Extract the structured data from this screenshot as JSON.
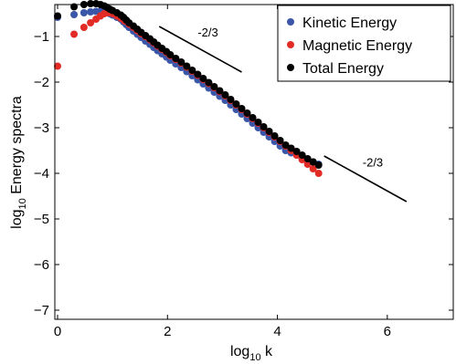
{
  "chart_data": {
    "type": "scatter",
    "xlim": [
      -0.05,
      7.2
    ],
    "ylim": [
      -7.2,
      -0.3
    ],
    "xticks": [
      0,
      2,
      4,
      6
    ],
    "yticks": [
      -1,
      -2,
      -3,
      -4,
      -5,
      -6,
      -7
    ],
    "xlabel": {
      "base": "log",
      "sub": "10",
      "rest": " k"
    },
    "ylabel": {
      "base": "log",
      "sub": "10",
      "rest": " Energy spectra"
    },
    "legend_position": "top-right",
    "series": [
      {
        "name": "Kinetic Energy",
        "color": "#3a56a8",
        "x": [
          0.0,
          0.3,
          0.48,
          0.6,
          0.7,
          0.78,
          0.85,
          0.9,
          0.95,
          1.0,
          1.08,
          1.15,
          1.2,
          1.25,
          1.3,
          1.38,
          1.45,
          1.52,
          1.6,
          1.68,
          1.75,
          1.82,
          1.9,
          1.98,
          2.05,
          2.15,
          2.25,
          2.35,
          2.45,
          2.55,
          2.65,
          2.75,
          2.85,
          2.95,
          3.05,
          3.15,
          3.25,
          3.35,
          3.45,
          3.55,
          3.65,
          3.75,
          3.85,
          3.95,
          4.05,
          4.15,
          4.25,
          4.35,
          4.45,
          4.55,
          4.65,
          4.75
        ],
        "y": [
          -0.58,
          -0.52,
          -0.48,
          -0.46,
          -0.45,
          -0.45,
          -0.46,
          -0.48,
          -0.5,
          -0.53,
          -0.58,
          -0.62,
          -0.68,
          -0.74,
          -0.8,
          -0.88,
          -0.95,
          -1.02,
          -1.1,
          -1.17,
          -1.24,
          -1.31,
          -1.38,
          -1.45,
          -1.52,
          -1.6,
          -1.68,
          -1.77,
          -1.86,
          -1.95,
          -2.04,
          -2.13,
          -2.22,
          -2.31,
          -2.4,
          -2.5,
          -2.6,
          -2.7,
          -2.8,
          -2.9,
          -3.0,
          -3.1,
          -3.2,
          -3.3,
          -3.4,
          -3.5,
          -3.55,
          -3.6,
          -3.65,
          -3.7,
          -3.75,
          -3.8
        ]
      },
      {
        "name": "Magnetic Energy",
        "color": "#e32b26",
        "x": [
          0.0,
          0.3,
          0.48,
          0.6,
          0.7,
          0.78,
          0.85,
          0.92,
          1.0,
          1.08,
          1.15,
          1.22,
          1.3,
          1.38,
          1.45,
          1.52,
          1.6,
          1.68,
          1.75,
          1.82,
          1.9,
          1.98,
          2.05,
          2.15,
          2.25,
          2.35,
          2.45,
          2.55,
          2.65,
          2.75,
          2.85,
          2.95,
          3.05,
          3.15,
          3.25,
          3.35,
          3.45,
          3.55,
          3.65,
          3.75,
          3.85,
          3.95,
          4.05,
          4.15,
          4.25,
          4.35,
          4.45,
          4.55,
          4.65,
          4.75
        ],
        "y": [
          -1.65,
          -0.95,
          -0.8,
          -0.7,
          -0.62,
          -0.55,
          -0.5,
          -0.48,
          -0.5,
          -0.55,
          -0.6,
          -0.66,
          -0.73,
          -0.8,
          -0.87,
          -0.94,
          -1.0,
          -1.07,
          -1.14,
          -1.21,
          -1.28,
          -1.35,
          -1.42,
          -1.5,
          -1.58,
          -1.67,
          -1.76,
          -1.85,
          -1.94,
          -2.03,
          -2.12,
          -2.21,
          -2.3,
          -2.4,
          -2.5,
          -2.6,
          -2.7,
          -2.8,
          -2.9,
          -3.0,
          -3.1,
          -3.2,
          -3.3,
          -3.4,
          -3.5,
          -3.6,
          -3.7,
          -3.8,
          -3.9,
          -4.0
        ]
      },
      {
        "name": "Total Energy",
        "color": "#000000",
        "x": [
          0.0,
          0.3,
          0.48,
          0.6,
          0.7,
          0.78,
          0.85,
          0.9,
          0.95,
          1.0,
          1.08,
          1.15,
          1.2,
          1.25,
          1.3,
          1.38,
          1.45,
          1.52,
          1.6,
          1.68,
          1.75,
          1.82,
          1.9,
          1.98,
          2.05,
          2.15,
          2.25,
          2.35,
          2.45,
          2.55,
          2.65,
          2.75,
          2.85,
          2.95,
          3.05,
          3.15,
          3.25,
          3.35,
          3.45,
          3.55,
          3.65,
          3.75,
          3.85,
          3.95,
          4.05,
          4.15,
          4.25,
          4.35,
          4.45,
          4.55,
          4.65,
          4.75
        ],
        "y": [
          -0.55,
          -0.35,
          -0.3,
          -0.28,
          -0.28,
          -0.3,
          -0.33,
          -0.36,
          -0.4,
          -0.43,
          -0.48,
          -0.53,
          -0.58,
          -0.64,
          -0.7,
          -0.77,
          -0.84,
          -0.91,
          -0.98,
          -1.05,
          -1.12,
          -1.19,
          -1.26,
          -1.33,
          -1.4,
          -1.48,
          -1.56,
          -1.65,
          -1.74,
          -1.83,
          -1.92,
          -2.01,
          -2.1,
          -2.19,
          -2.28,
          -2.38,
          -2.48,
          -2.58,
          -2.68,
          -2.78,
          -2.88,
          -2.98,
          -3.08,
          -3.18,
          -3.28,
          -3.38,
          -3.45,
          -3.52,
          -3.6,
          -3.68,
          -3.75,
          -3.82
        ]
      }
    ],
    "annotations": [
      {
        "text": "-2/3",
        "line_x": [
          1.85,
          3.35
        ],
        "line_y": [
          -0.78,
          -1.78
        ],
        "label_x": 2.55,
        "label_y": -1.0
      },
      {
        "text": "-2/3",
        "line_x": [
          4.85,
          6.35
        ],
        "line_y": [
          -3.62,
          -4.62
        ],
        "label_x": 5.55,
        "label_y": -3.85
      }
    ]
  }
}
